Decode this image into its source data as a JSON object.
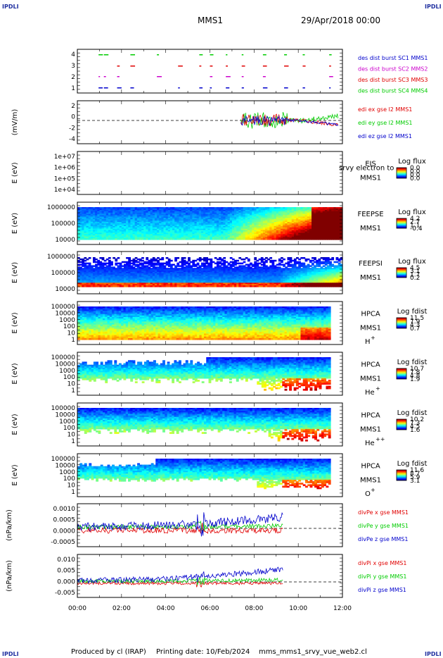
{
  "header": {
    "corner_tl": "IPDLI",
    "corner_tr": "IPDLI",
    "corner_bl": "IPDLI",
    "corner_br": "IPDLI",
    "mission": "MMS1",
    "date": "29/Apr/2018 00:00"
  },
  "footer": {
    "produced_by": "Produced by cl (IRAP)",
    "printing_date": "Printing date: 10/Feb/2024",
    "file": "mms_mms1_srvy_vue_web2.cl"
  },
  "colors": {
    "red": "#e00000",
    "green": "#00cc00",
    "blue": "#0000cc",
    "magenta": "#cc00cc"
  },
  "chart_data": {
    "type": "multi-panel time series",
    "x_ticks": [
      "00:00",
      "02:00",
      "04:00",
      "06:00",
      "08:00",
      "10:00",
      "12:00"
    ],
    "x_range_hours": [
      0,
      12
    ],
    "panels": [
      {
        "id": "burst",
        "type": "line",
        "ylabel": "",
        "y_ticks": [
          "4",
          "3",
          "2",
          "1"
        ],
        "legend": [
          {
            "name": "des dist burst SC1 MMS1",
            "color": "#0000cc"
          },
          {
            "name": "des dist burst SC2 MMS2",
            "color": "#cc00cc"
          },
          {
            "name": "des dist burst SC3 MMS3",
            "color": "#e00000"
          },
          {
            "name": "des dist burst SC4 MMS4",
            "color": "#00cc00"
          }
        ]
      },
      {
        "id": "efield",
        "type": "line",
        "ylabel": "(mV/m)",
        "y_ticks": [
          "2",
          "0",
          "-2",
          "-4"
        ],
        "legend": [
          {
            "name": "edi ex gse l2 MMS1",
            "color": "#e00000"
          },
          {
            "name": "edi ey gse l2 MMS1",
            "color": "#00cc00"
          },
          {
            "name": "edi ez gse l2 MMS1",
            "color": "#0000cc"
          }
        ]
      },
      {
        "id": "eis",
        "type": "heatmap",
        "ylabel": "E (eV)",
        "y_ticks": [
          "1e+07",
          "1e+06",
          "1e+05",
          "1e+04"
        ],
        "label": "EIS",
        "overlay": "srvy electron to",
        "sat": "MMS1",
        "cbar_title": "Log flux",
        "cbar_ticks": [
          "0.0",
          "0.0",
          "0.0",
          "0.0"
        ]
      },
      {
        "id": "feeps_e",
        "type": "heatmap",
        "ylabel": "E (eV)",
        "y_ticks": [
          "1000000",
          "100000",
          "10000"
        ],
        "label": "FEEPSE",
        "sat": "MMS1",
        "cbar_title": "Log flux",
        "cbar_ticks": [
          "4.2",
          "2.7",
          "1.1",
          "-0.4"
        ]
      },
      {
        "id": "feeps_i",
        "type": "heatmap",
        "ylabel": "E (eV)",
        "y_ticks": [
          "1000000",
          "100000",
          "10000"
        ],
        "label": "FEEPSI",
        "sat": "MMS1",
        "cbar_title": "Log flux",
        "cbar_ticks": [
          "4.5",
          "3.1",
          "1.7",
          "0.2"
        ]
      },
      {
        "id": "hpca_h",
        "type": "heatmap",
        "ylabel": "E (eV)",
        "y_ticks": [
          "100000",
          "10000",
          "1000",
          "100",
          "10",
          "1"
        ],
        "label": "HPCA",
        "sat": "MMS1",
        "species": "H",
        "charge": "+",
        "cbar_title": "Log fdist",
        "cbar_ticks": [
          "11.5",
          "7.9",
          "4.3",
          "0.7"
        ]
      },
      {
        "id": "hpca_he1",
        "type": "heatmap",
        "ylabel": "E (eV)",
        "y_ticks": [
          "100000",
          "10000",
          "1000",
          "100",
          "10",
          "1"
        ],
        "label": "HPCA",
        "sat": "MMS1",
        "species": "He",
        "charge": "+",
        "cbar_title": "Log fdist",
        "cbar_ticks": [
          "10.7",
          "7.8",
          "4.8",
          "1.9"
        ]
      },
      {
        "id": "hpca_he2",
        "type": "heatmap",
        "ylabel": "E (eV)",
        "y_ticks": [
          "100000",
          "10000",
          "1000",
          "100",
          "10",
          "1"
        ],
        "label": "HPCA",
        "sat": "MMS1",
        "species": "He",
        "charge": "++",
        "cbar_title": "Log fdist",
        "cbar_ticks": [
          "10.2",
          "7.3",
          "4.5",
          "1.6"
        ]
      },
      {
        "id": "hpca_o",
        "type": "heatmap",
        "ylabel": "E (eV)",
        "y_ticks": [
          "100000",
          "10000",
          "1000",
          "100",
          "10",
          "1"
        ],
        "label": "HPCA",
        "sat": "MMS1",
        "species": "O",
        "charge": "+",
        "cbar_title": "Log fdist",
        "cbar_ticks": [
          "11.6",
          "8.7",
          "5.9",
          "3.1"
        ]
      },
      {
        "id": "divpe",
        "type": "line",
        "ylabel": "(nPa/km)",
        "y_ticks": [
          "0.0010",
          "0.0005",
          "0.0000",
          "-0.0005"
        ],
        "legend": [
          {
            "name": "divPe x gse MMS1",
            "color": "#e00000"
          },
          {
            "name": "divPe y gse MMS1",
            "color": "#00cc00"
          },
          {
            "name": "divPe z gse MMS1",
            "color": "#0000cc"
          }
        ]
      },
      {
        "id": "divpi",
        "type": "line",
        "ylabel": "(nPa/km)",
        "y_ticks": [
          "0.010",
          "0.005",
          "0.000",
          "-0.005"
        ],
        "legend": [
          {
            "name": "divPi x gse MMS1",
            "color": "#e00000"
          },
          {
            "name": "divPi y gse MMS1",
            "color": "#00cc00"
          },
          {
            "name": "divPi z gse MMS1",
            "color": "#0000cc"
          }
        ]
      }
    ]
  }
}
